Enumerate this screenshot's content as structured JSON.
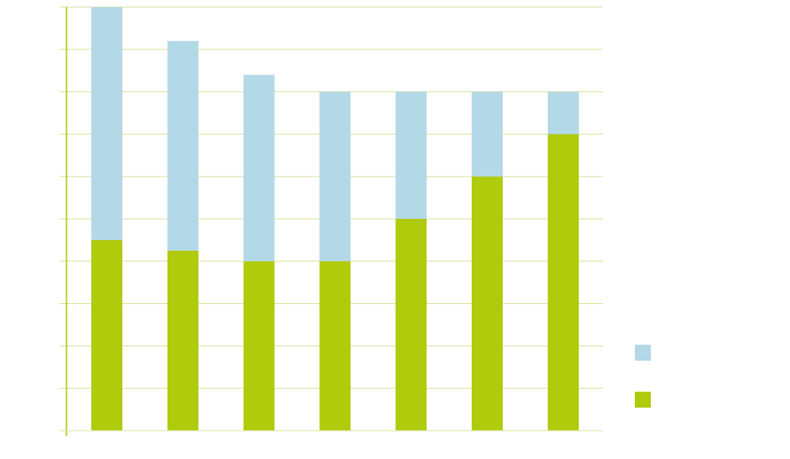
{
  "colors": {
    "lower_series": "#b0ca0c",
    "upper_series": "#b3d8e6",
    "grid": "#d6e5a0",
    "axis": "#b0ca0c"
  },
  "chart_data": {
    "type": "bar",
    "stacked": true,
    "categories": [
      "",
      "",
      "",
      "",
      "",
      "",
      ""
    ],
    "series": [
      {
        "values": [
          4.5,
          4.25,
          4.0,
          4.0,
          5.0,
          6.0,
          7.0
        ],
        "color": "#b0ca0c"
      },
      {
        "values": [
          5.5,
          4.95,
          4.4,
          4.0,
          3.0,
          2.0,
          1.0
        ],
        "color": "#b3d8e6"
      }
    ],
    "ylim": [
      0,
      10
    ],
    "y_gridlines": 10,
    "grid": true,
    "legend_position": "bottom-right",
    "title": "",
    "xlabel": "",
    "ylabel": ""
  }
}
